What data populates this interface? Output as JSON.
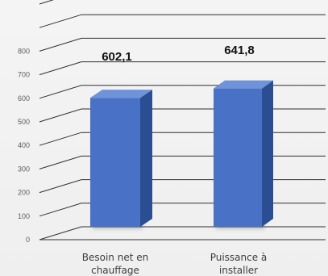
{
  "chart_data": {
    "type": "bar",
    "categories": [
      "Besoin net en chauffage",
      "Puissance à installer"
    ],
    "values": [
      602.1,
      641.8
    ],
    "value_labels": [
      "602,1",
      "641,8"
    ],
    "title": "",
    "xlabel": "",
    "ylabel": "",
    "ylim": [
      0,
      1000
    ],
    "ticks": [
      0,
      100,
      200,
      300,
      400,
      500,
      600,
      700,
      800
    ],
    "tick_labels": [
      "0",
      "100",
      "200",
      "300",
      "400",
      "500",
      "600",
      "700",
      "800"
    ],
    "category_lines": [
      [
        "Besoin net en",
        "chauffage"
      ],
      [
        "Puissance à",
        "installer"
      ]
    ],
    "grid": true,
    "legend": "none",
    "style": "3d-bar"
  },
  "colors": {
    "bar_front": "#4a72c7",
    "bar_side": "#2b4e93",
    "bar_top": "#6f93db",
    "grid": "#2f2f2f",
    "baseline": "#555555"
  }
}
